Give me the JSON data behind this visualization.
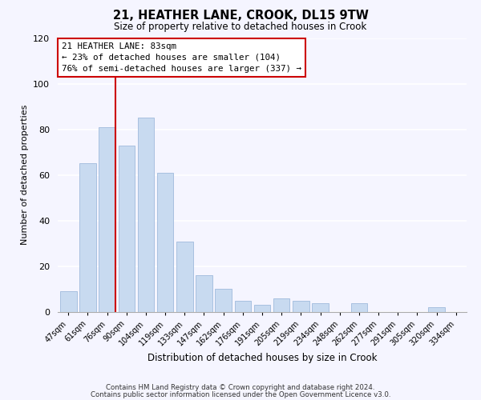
{
  "title": "21, HEATHER LANE, CROOK, DL15 9TW",
  "subtitle": "Size of property relative to detached houses in Crook",
  "xlabel": "Distribution of detached houses by size in Crook",
  "ylabel": "Number of detached properties",
  "bar_color": "#c8daf0",
  "bar_edge_color": "#a8c0e0",
  "categories": [
    "47sqm",
    "61sqm",
    "76sqm",
    "90sqm",
    "104sqm",
    "119sqm",
    "133sqm",
    "147sqm",
    "162sqm",
    "176sqm",
    "191sqm",
    "205sqm",
    "219sqm",
    "234sqm",
    "248sqm",
    "262sqm",
    "277sqm",
    "291sqm",
    "305sqm",
    "320sqm",
    "334sqm"
  ],
  "values": [
    9,
    65,
    81,
    73,
    85,
    61,
    31,
    16,
    10,
    5,
    3,
    6,
    5,
    4,
    0,
    4,
    0,
    0,
    0,
    2,
    0
  ],
  "ylim": [
    0,
    120
  ],
  "yticks": [
    0,
    20,
    40,
    60,
    80,
    100,
    120
  ],
  "vline_x_index": 2.5,
  "annotation_title": "21 HEATHER LANE: 83sqm",
  "annotation_line1": "← 23% of detached houses are smaller (104)",
  "annotation_line2": "76% of semi-detached houses are larger (337) →",
  "annotation_box_color": "#ffffff",
  "annotation_box_edge_color": "#cc0000",
  "vline_color": "#cc0000",
  "background_color": "#f5f5ff",
  "footer1": "Contains HM Land Registry data © Crown copyright and database right 2024.",
  "footer2": "Contains public sector information licensed under the Open Government Licence v3.0."
}
